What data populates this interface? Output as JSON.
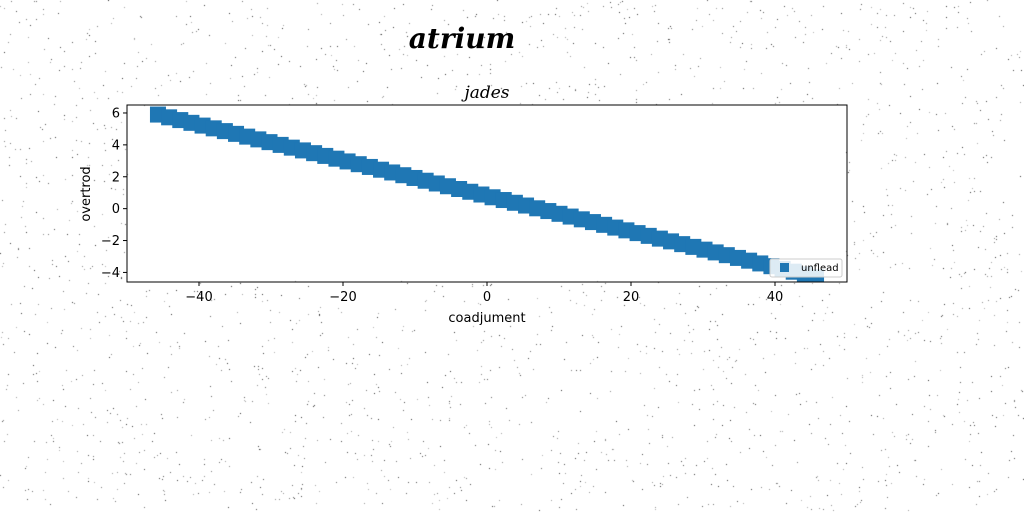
{
  "figure": {
    "suptitle": "atrium"
  },
  "chart_data": {
    "type": "scatter",
    "title": "jades",
    "xlabel": "coadjument",
    "ylabel": "overtrod",
    "xlim": [
      -50,
      50
    ],
    "ylim": [
      -4.6,
      6.5
    ],
    "xticks": [
      -40,
      -20,
      0,
      20,
      40
    ],
    "yticks": [
      -4,
      -2,
      0,
      2,
      4,
      6
    ],
    "grid": false,
    "legend": {
      "placement": "lower-right"
    },
    "series": [
      {
        "name": "unflead",
        "marker": "square",
        "color": "#1f77b4",
        "x_start": -45.7,
        "x_end": 45.7,
        "y_start": 5.9,
        "y_end": -4.3,
        "n_points": 60
      }
    ]
  }
}
